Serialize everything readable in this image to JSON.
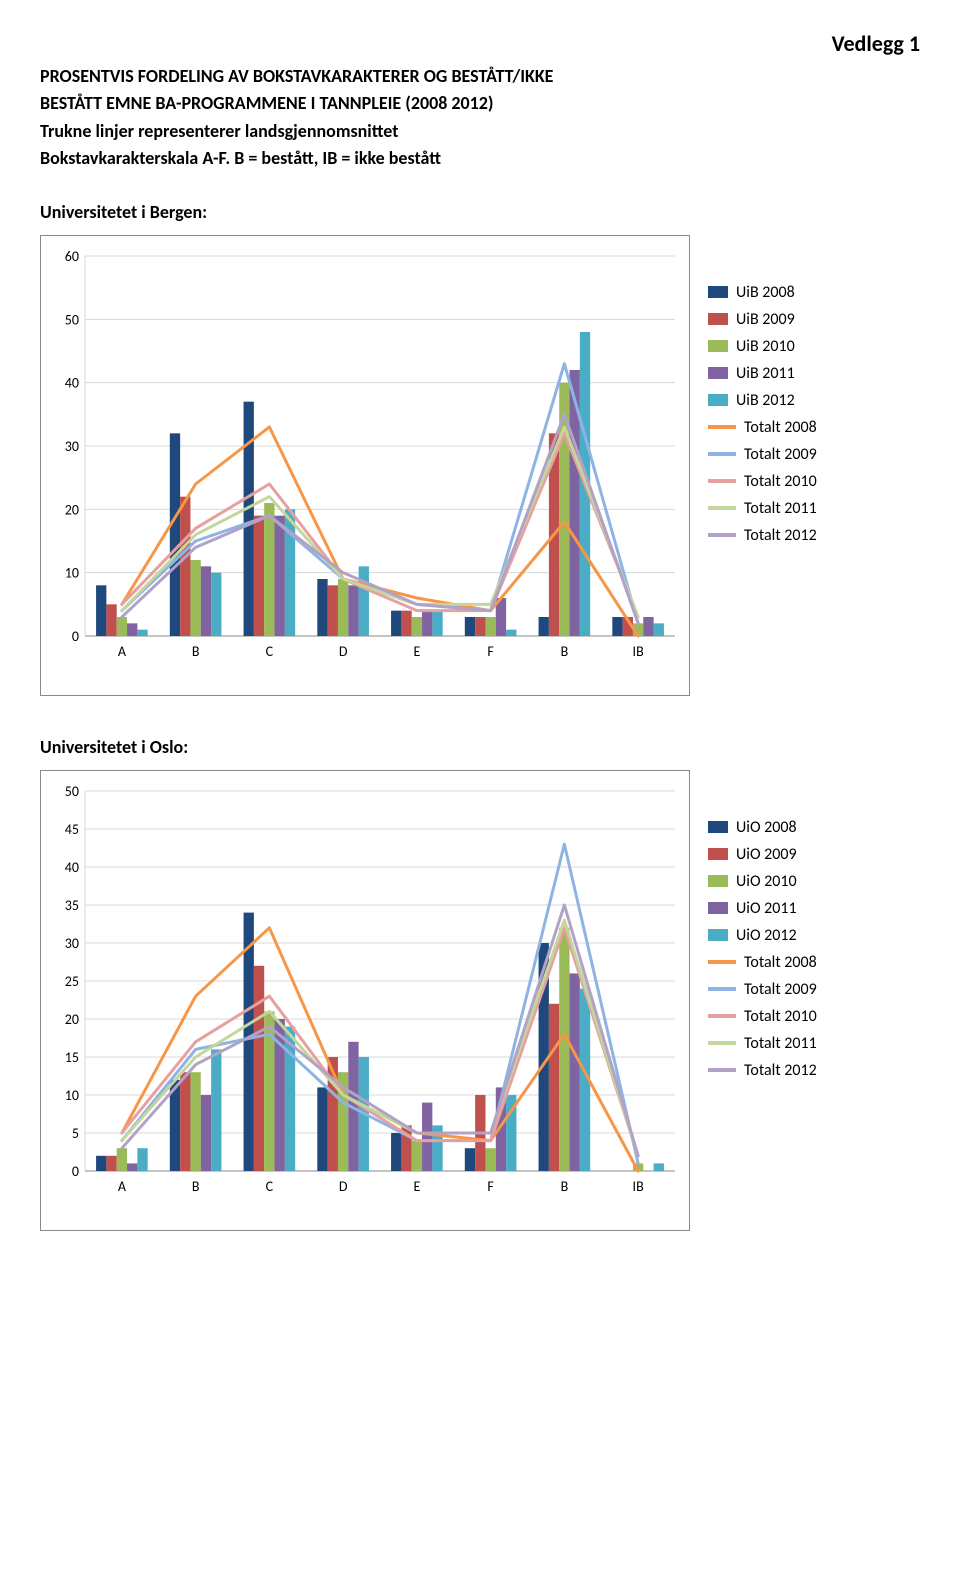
{
  "attachment_label": "Vedlegg 1",
  "title_lines": [
    "PROSENTVIS FORDELING AV BOKSTAVKARAKTERER OG BESTÅTT/IKKE",
    "BESTÅTT EMNE BA-PROGRAMMENE I TANNPLEIE (2008 2012)"
  ],
  "subtitle": "Trukne linjer representerer landsgjennomsnittet",
  "scale_note": "Bokstavkarakterskala A-F. B = bestått, IB = ikke bestått",
  "chart1": {
    "heading": "Universitetet i Bergen:",
    "type": "grouped-bar-with-lines",
    "categories": [
      "A",
      "B",
      "C",
      "D",
      "E",
      "F",
      "B",
      "IB"
    ],
    "ymax": 60,
    "ytick_step": 10,
    "bar_series": [
      {
        "label": "UiB 2008",
        "color": "#1f497d",
        "values": [
          8,
          32,
          37,
          9,
          4,
          3,
          3,
          3
        ]
      },
      {
        "label": "UiB 2009",
        "color": "#c0504d",
        "values": [
          5,
          22,
          19,
          8,
          4,
          3,
          32,
          3
        ]
      },
      {
        "label": "UiB 2010",
        "color": "#9bbb59",
        "values": [
          3,
          12,
          21,
          9,
          3,
          3,
          40,
          2
        ]
      },
      {
        "label": "UiB 2011",
        "color": "#8064a2",
        "values": [
          2,
          11,
          19,
          8,
          4,
          6,
          42,
          3
        ]
      },
      {
        "label": "UiB 2012",
        "color": "#4bacc6",
        "values": [
          1,
          10,
          20,
          11,
          4,
          1,
          48,
          2
        ]
      }
    ],
    "line_series": [
      {
        "label": "Totalt 2008",
        "color": "#f79646",
        "values": [
          5,
          24,
          33,
          9,
          6,
          4,
          18,
          0
        ]
      },
      {
        "label": "Totalt 2009",
        "color": "#8eb4e3",
        "values": [
          4,
          15,
          19,
          9,
          5,
          4,
          43,
          2
        ]
      },
      {
        "label": "Totalt 2010",
        "color": "#e6a0a0",
        "values": [
          5,
          17,
          24,
          9,
          4,
          4,
          32,
          3
        ]
      },
      {
        "label": "Totalt 2011",
        "color": "#c3d69b",
        "values": [
          4,
          16,
          22,
          9,
          5,
          5,
          33,
          3
        ]
      },
      {
        "label": "Totalt 2012",
        "color": "#b3a2c7",
        "values": [
          3,
          14,
          19,
          10,
          5,
          4,
          35,
          2
        ]
      }
    ],
    "background_color": "#ffffff",
    "grid_color": "#d9d9d9",
    "border_color": "#888888",
    "axis_fontsize": 14,
    "category_fontsize": 14,
    "bar_width": 0.14,
    "line_width": 3
  },
  "chart2": {
    "heading": "Universitetet i Oslo:",
    "type": "grouped-bar-with-lines",
    "categories": [
      "A",
      "B",
      "C",
      "D",
      "E",
      "F",
      "B",
      "IB"
    ],
    "ymax": 50,
    "ytick_step": 5,
    "bar_series": [
      {
        "label": "UiO 2008",
        "color": "#1f497d",
        "values": [
          2,
          12,
          34,
          11,
          5,
          3,
          30,
          0
        ]
      },
      {
        "label": "UiO 2009",
        "color": "#c0504d",
        "values": [
          2,
          13,
          27,
          15,
          6,
          10,
          22,
          0
        ]
      },
      {
        "label": "UiO 2010",
        "color": "#9bbb59",
        "values": [
          3,
          13,
          21,
          13,
          4,
          3,
          32,
          1
        ]
      },
      {
        "label": "UiO 2011",
        "color": "#8064a2",
        "values": [
          1,
          10,
          20,
          17,
          9,
          11,
          26,
          0
        ]
      },
      {
        "label": "UiO 2012",
        "color": "#4bacc6",
        "values": [
          3,
          16,
          19,
          15,
          6,
          10,
          24,
          1
        ]
      }
    ],
    "line_series": [
      {
        "label": "Totalt 2008",
        "color": "#f79646",
        "values": [
          5,
          23,
          32,
          10,
          5,
          4,
          18,
          0
        ]
      },
      {
        "label": "Totalt 2009",
        "color": "#8eb4e3",
        "values": [
          4,
          16,
          18,
          9,
          4,
          4,
          43,
          1
        ]
      },
      {
        "label": "Totalt 2010",
        "color": "#e6a0a0",
        "values": [
          5,
          17,
          23,
          10,
          4,
          4,
          32,
          2
        ]
      },
      {
        "label": "Totalt 2011",
        "color": "#c3d69b",
        "values": [
          4,
          15,
          21,
          10,
          5,
          5,
          33,
          2
        ]
      },
      {
        "label": "Totalt 2012",
        "color": "#b3a2c7",
        "values": [
          3,
          14,
          19,
          11,
          5,
          5,
          35,
          2
        ]
      }
    ],
    "background_color": "#ffffff",
    "grid_color": "#d9d9d9",
    "border_color": "#888888",
    "axis_fontsize": 14,
    "category_fontsize": 14,
    "bar_width": 0.14,
    "line_width": 3
  }
}
